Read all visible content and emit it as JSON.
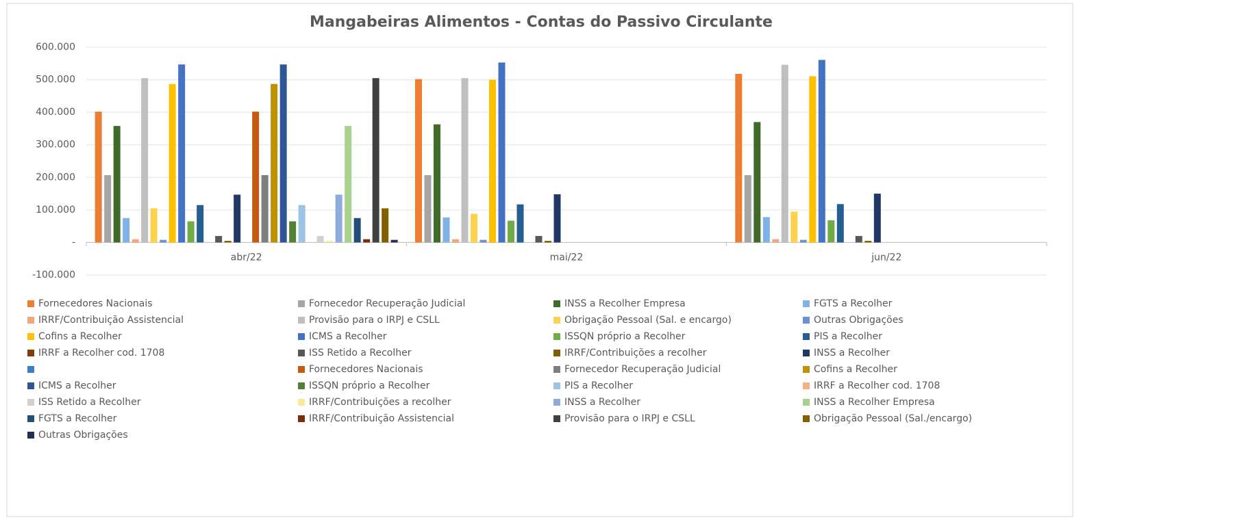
{
  "chart_data": {
    "type": "bar",
    "title": "Mangabeiras Alimentos - Contas do Passivo Circulante",
    "categories": [
      "abr/22",
      "mai/22",
      "jun/22"
    ],
    "ylim": [
      -100000,
      600000
    ],
    "yticks": [
      {
        "value": -100000,
        "label": "-100.000"
      },
      {
        "value": 0,
        "label": "-"
      },
      {
        "value": 100000,
        "label": "100.000"
      },
      {
        "value": 200000,
        "label": "200.000"
      },
      {
        "value": 300000,
        "label": "300.000"
      },
      {
        "value": 400000,
        "label": "400.000"
      },
      {
        "value": 500000,
        "label": "500.000"
      },
      {
        "value": 600000,
        "label": "600.000"
      }
    ],
    "grid": true,
    "legend": "bottom",
    "series": [
      {
        "name": "Fornecedores Nacionais",
        "color": "#ed7d31",
        "values": [
          402000,
          502000,
          518000
        ]
      },
      {
        "name": "Fornecedor Recuperação Judicial",
        "color": "#a5a5a5",
        "values": [
          207000,
          207000,
          207000
        ]
      },
      {
        "name": "INSS a Recolher Empresa",
        "color": "#3f6b2a",
        "values": [
          358000,
          363000,
          370000
        ]
      },
      {
        "name": "FGTS a Recolher",
        "color": "#7fb2e5",
        "values": [
          75000,
          77000,
          78000
        ]
      },
      {
        "name": "IRRF/Contribuição Assistencial",
        "color": "#f4a57c",
        "values": [
          10000,
          10000,
          10000
        ]
      },
      {
        "name": "Provisão para o IRPJ e CSLL",
        "color": "#bfbfbf",
        "values": [
          505000,
          505000,
          546000
        ]
      },
      {
        "name": "Obrigação Pessoal (Sal. e encargo)",
        "color": "#ffd24d",
        "values": [
          105000,
          88000,
          95000
        ]
      },
      {
        "name": "Outras Obrigações",
        "color": "#6f8fcf",
        "values": [
          8000,
          8000,
          8000
        ]
      },
      {
        "name": "Cofins a Recolher",
        "color": "#ffc000",
        "values": [
          487000,
          500000,
          511000
        ]
      },
      {
        "name": "ICMS a Recolher",
        "color": "#4472c4",
        "values": [
          547000,
          553000,
          561000
        ]
      },
      {
        "name": "ISSQN próprio a Recolher",
        "color": "#70ad47",
        "values": [
          65000,
          67000,
          68000
        ]
      },
      {
        "name": "PIS a Recolher",
        "color": "#255e91",
        "values": [
          115000,
          117000,
          118000
        ]
      },
      {
        "name": "IRRF a Recolher cod. 1708",
        "color": "#843c0c",
        "values": [
          null,
          null,
          null
        ]
      },
      {
        "name": "ISS Retido a Recolher",
        "color": "#595959",
        "values": [
          20000,
          20000,
          20000
        ]
      },
      {
        "name": "IRRF/Contribuições a recolher",
        "color": "#7f6000",
        "values": [
          5000,
          5000,
          5000
        ]
      },
      {
        "name": "INSS a Recolher",
        "color": "#203864",
        "values": [
          147000,
          148000,
          150000
        ]
      },
      {
        "name": null,
        "color": "#3a7dc9",
        "values": [
          null,
          null,
          null
        ]
      },
      {
        "name": "Fornecedores Nacionais",
        "color": "#c55a11",
        "values": [
          402000,
          null,
          null
        ]
      },
      {
        "name": "Fornecedor Recuperação Judicial",
        "color": "#7f7f7f",
        "values": [
          207000,
          null,
          null
        ]
      },
      {
        "name": "Cofins a Recolher",
        "color": "#bf9000",
        "values": [
          487000,
          null,
          null
        ]
      },
      {
        "name": "ICMS a Recolher",
        "color": "#2f5597",
        "values": [
          547000,
          null,
          null
        ]
      },
      {
        "name": "ISSQN próprio a Recolher",
        "color": "#548235",
        "values": [
          65000,
          null,
          null
        ]
      },
      {
        "name": "PIS a Recolher",
        "color": "#9dc3e6",
        "values": [
          115000,
          null,
          null
        ]
      },
      {
        "name": "IRRF a Recolher cod. 1708",
        "color": "#f4b183",
        "values": [
          null,
          null,
          null
        ]
      },
      {
        "name": "ISS Retido a Recolher",
        "color": "#d0d0d0",
        "values": [
          20000,
          null,
          null
        ]
      },
      {
        "name": "IRRF/Contribuições a recolher",
        "color": "#ffe699",
        "values": [
          5000,
          null,
          null
        ]
      },
      {
        "name": "INSS a Recolher",
        "color": "#8faadc",
        "values": [
          147000,
          null,
          null
        ]
      },
      {
        "name": "INSS a Recolher Empresa",
        "color": "#a9d18e",
        "values": [
          358000,
          null,
          null
        ]
      },
      {
        "name": "FGTS a Recolher",
        "color": "#1f4e79",
        "values": [
          75000,
          null,
          null
        ]
      },
      {
        "name": "IRRF/Contribuição Assistencial",
        "color": "#7b2c0c",
        "values": [
          10000,
          null,
          null
        ]
      },
      {
        "name": "Provisão para o IRPJ e CSLL",
        "color": "#404040",
        "values": [
          505000,
          null,
          null
        ]
      },
      {
        "name": "Obrigação Pessoal (Sal./encargo)",
        "color": "#806000",
        "values": [
          105000,
          null,
          null
        ]
      },
      {
        "name": "Outras Obrigações",
        "color": "#1f2f55",
        "values": [
          8000,
          null,
          null
        ]
      }
    ]
  }
}
